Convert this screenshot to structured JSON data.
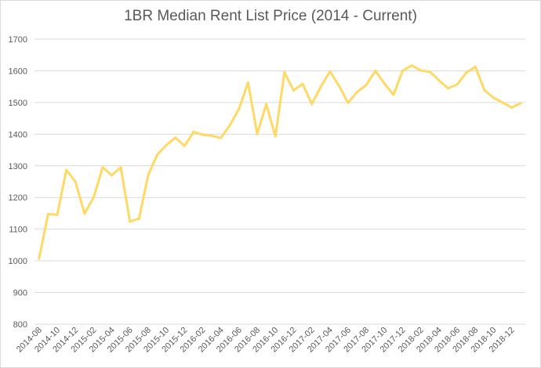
{
  "chart_data": {
    "type": "line",
    "title": "1BR Median Rent List Price (2014 - Current)",
    "xlabel": "",
    "ylabel": "",
    "ylim": [
      800,
      1700
    ],
    "yticks": [
      800,
      900,
      1000,
      1100,
      1200,
      1300,
      1400,
      1500,
      1600,
      1700
    ],
    "grid": true,
    "legend": "none",
    "series": [
      {
        "x": [
          "2014-08",
          "2014-09",
          "2014-10",
          "2014-11",
          "2014-12",
          "2015-01",
          "2015-02",
          "2015-03",
          "2015-04",
          "2015-05",
          "2015-06",
          "2015-07",
          "2015-08",
          "2015-09",
          "2015-10",
          "2015-11",
          "2015-12",
          "2016-01",
          "2016-02",
          "2016-03",
          "2016-04",
          "2016-05",
          "2016-06",
          "2016-07",
          "2016-08",
          "2016-09",
          "2016-10",
          "2016-11",
          "2016-12",
          "2017-01",
          "2017-02",
          "2017-03",
          "2017-04",
          "2017-05",
          "2017-06",
          "2017-07",
          "2017-08",
          "2017-09",
          "2017-10",
          "2017-11",
          "2017-12",
          "2018-01",
          "2018-02",
          "2018-03",
          "2018-04",
          "2018-05",
          "2018-06",
          "2018-07",
          "2018-08",
          "2018-09",
          "2018-10",
          "2018-11",
          "2018-12",
          "2019-01"
        ],
        "values": [
          1007,
          1148,
          1145,
          1287,
          1250,
          1149,
          1200,
          1295,
          1270,
          1295,
          1124,
          1133,
          1270,
          1335,
          1365,
          1389,
          1363,
          1407,
          1398,
          1395,
          1388,
          1428,
          1480,
          1563,
          1400,
          1495,
          1393,
          1595,
          1538,
          1559,
          1495,
          1550,
          1598,
          1553,
          1499,
          1533,
          1555,
          1600,
          1560,
          1524,
          1600,
          1617,
          1601,
          1597,
          1570,
          1545,
          1557,
          1594,
          1613,
          1539,
          1515,
          1500,
          1484,
          1498
        ],
        "color": "#FFD966"
      }
    ]
  }
}
